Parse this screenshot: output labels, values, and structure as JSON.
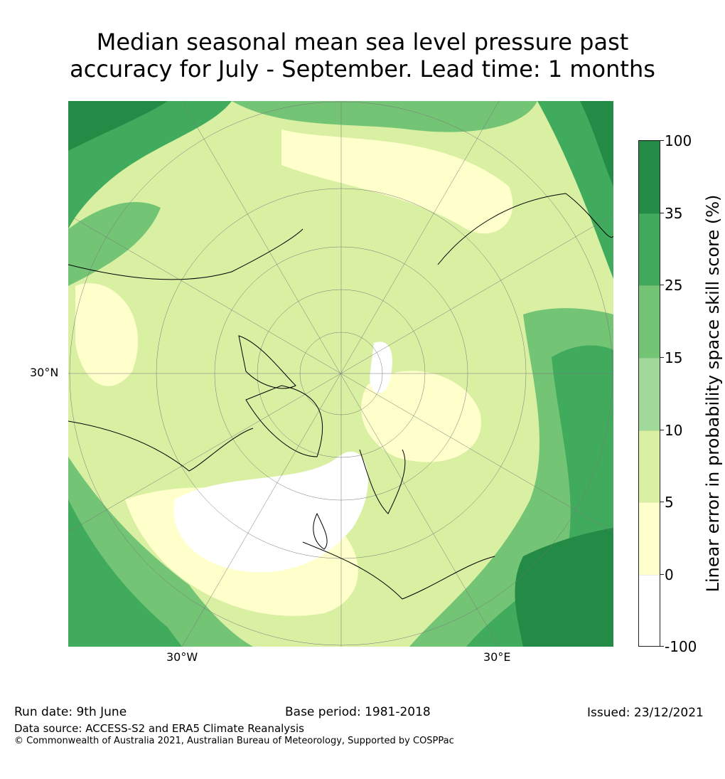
{
  "title_line1": "Median seasonal mean sea level pressure past",
  "title_line2": "accuracy for July - September. Lead time: 1 months",
  "map": {
    "lat_label": "30°N",
    "lon_labels": [
      "30°W",
      "30°E"
    ]
  },
  "colorbar": {
    "label": "Linear error in probability space skill score (%)",
    "ticks": [
      "100",
      "35",
      "25",
      "15",
      "10",
      "5",
      "0",
      "-100"
    ],
    "colors": [
      "#238b45",
      "#41ab5d",
      "#74c476",
      "#a1d99b",
      "#d9f0a3",
      "#ffffcc",
      "#ffffff"
    ]
  },
  "footer": {
    "run_date": "Run date: 9th June",
    "base_period": "Base period: 1981-2018",
    "issued": "Issued: 23/12/2021",
    "data_source": "Data source: ACCESS-S2 and ERA5 Climate Reanalysis",
    "copyright": "© Commonwealth of Australia 2021, Australian Bureau of Meteorology, Supported by COSPPac"
  }
}
